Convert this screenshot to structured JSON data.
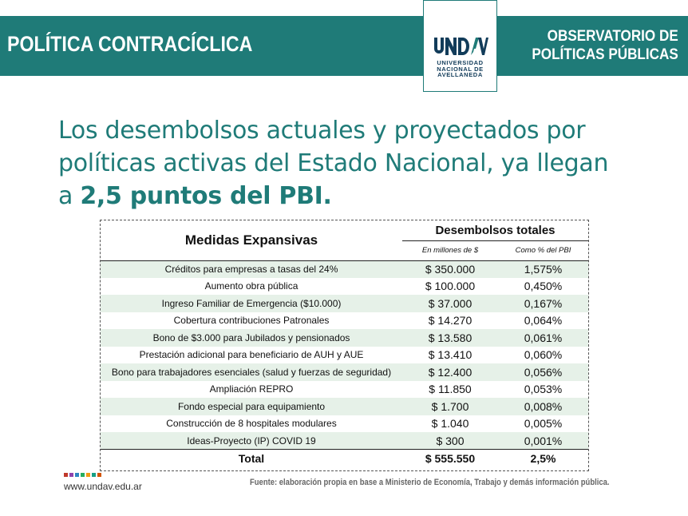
{
  "header": {
    "title": "POLÍTICA CONTRACÍCLICA",
    "org_line1": "OBSERVATORIO DE",
    "org_line2": "POLÍTICAS PÚBLICAS"
  },
  "logo": {
    "mark": "UNDAV",
    "line1": "UNIVERSIDAD",
    "line2": "NACIONAL DE",
    "line3": "AVELLANEDA",
    "colors": {
      "navy": "#123c5a",
      "teal": "#1f7b78"
    }
  },
  "headline": {
    "line1": "Los desembolsos actuales y proyectados por",
    "line2": "políticas activas del Estado Nacional, ya llegan",
    "line3_prefix": "a ",
    "line3_bold": "2,5 puntos del PBI."
  },
  "table": {
    "col_medidas": "Medidas Expansivas",
    "col_group": "Desembolsos totales",
    "col_millones": "En millones de $",
    "col_pbi": "Como % del PBI",
    "rows": [
      {
        "medida": "Créditos para empresas a tasas del 24%",
        "millones": "$ 350.000",
        "pbi": "1,575%"
      },
      {
        "medida": "Aumento obra pública",
        "millones": "$ 100.000",
        "pbi": "0,450%"
      },
      {
        "medida": "Ingreso Familiar de Emergencia ($10.000)",
        "millones": "$ 37.000",
        "pbi": "0,167%"
      },
      {
        "medida": "Cobertura contribuciones Patronales",
        "millones": "$ 14.270",
        "pbi": "0,064%"
      },
      {
        "medida": "Bono de $3.000 para Jubilados y pensionados",
        "millones": "$ 13.580",
        "pbi": "0,061%"
      },
      {
        "medida": "Prestación adicional para beneficiario de AUH y AUE",
        "millones": "$ 13.410",
        "pbi": "0,060%"
      },
      {
        "medida": "Bono para trabajadores esenciales (salud y fuerzas de seguridad)",
        "millones": "$ 12.400",
        "pbi": "0,056%"
      },
      {
        "medida": "Ampliación REPRO",
        "millones": "$ 11.850",
        "pbi": "0,053%"
      },
      {
        "medida": "Fondo especial para equipamiento",
        "millones": "$ 1.700",
        "pbi": "0,008%"
      },
      {
        "medida": "Construcción de 8 hospitales modulares",
        "millones": "$ 1.040",
        "pbi": "0,005%"
      },
      {
        "medida": "Ideas-Proyecto (IP) COVID 19",
        "millones": "$ 300",
        "pbi": "0,001%"
      }
    ],
    "total": {
      "label": "Total",
      "millones": "$ 555.550",
      "pbi": "2,5%"
    }
  },
  "footer": {
    "website": "www.undav.edu.ar",
    "source": "Fuente: elaboración propia en base a Ministerio de Economía, Trabajo y demás información pública.",
    "dot_colors": [
      "#c0392b",
      "#8e44ad",
      "#2e86c1",
      "#27ae60",
      "#f39c12",
      "#16a085",
      "#d35400"
    ]
  }
}
